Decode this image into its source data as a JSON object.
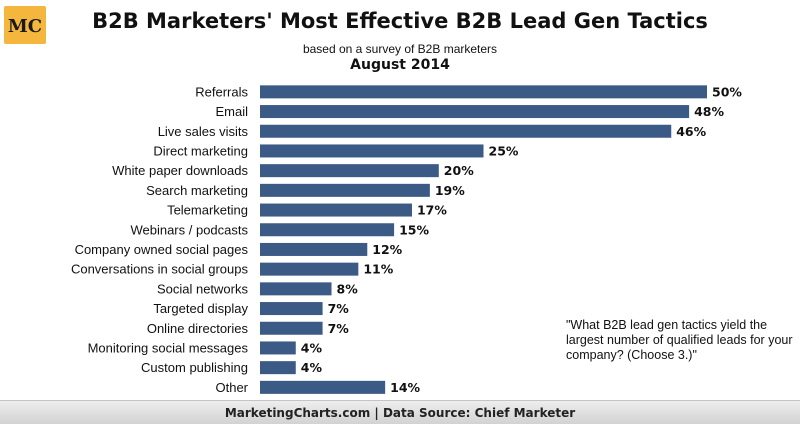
{
  "logo": {
    "text": "MC",
    "icon": "marketingcharts-logo",
    "color": "#f4b63c"
  },
  "header": {
    "title": "B2B Marketers' Most Effective B2B Lead Gen Tactics",
    "subtitle": "based on a survey of B2B marketers",
    "date": "August 2014"
  },
  "note": "\"What B2B lead gen tactics yield the largest number of qualified leads for your company? (Choose 3.)\"",
  "footer": {
    "source": "MarketingCharts.com | Data Source: Chief Marketer"
  },
  "chart_data": {
    "type": "bar",
    "orientation": "horizontal",
    "bar_color": "#3b5a85",
    "categories": [
      "Referrals",
      "Email",
      "Live sales visits",
      "Direct marketing",
      "White paper downloads",
      "Search marketing",
      "Telemarketing",
      "Webinars / podcasts",
      "Company owned social pages",
      "Conversations in social groups",
      "Social networks",
      "Targeted display",
      "Online directories",
      "Monitoring social messages",
      "Custom publishing",
      "Other"
    ],
    "values": [
      50,
      48,
      46,
      25,
      20,
      19,
      17,
      15,
      12,
      11,
      8,
      7,
      7,
      4,
      4,
      14
    ],
    "value_labels": [
      "50%",
      "48%",
      "46%",
      "25%",
      "20%",
      "19%",
      "17%",
      "15%",
      "12%",
      "11%",
      "8%",
      "7%",
      "7%",
      "4%",
      "4%",
      "14%"
    ],
    "xlim": [
      0,
      50
    ],
    "grid": false,
    "legend": false
  }
}
